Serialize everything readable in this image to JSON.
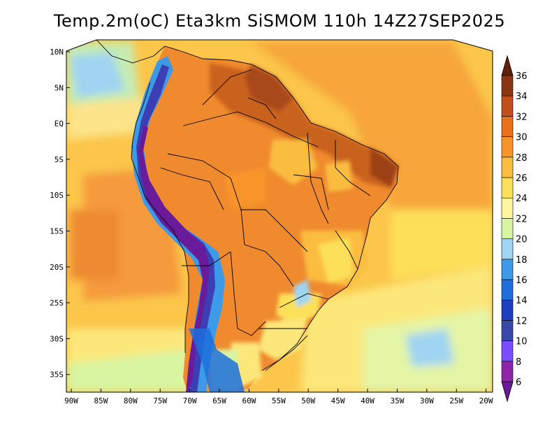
{
  "title": "Temp.2m(oC) Eta3km SiSMOM 110h 14Z27SEP2025",
  "map": {
    "lat_labels": [
      "10N",
      "5N",
      "EQ",
      "5S",
      "10S",
      "15S",
      "20S",
      "25S",
      "30S",
      "35S"
    ],
    "lon_labels": [
      "90W",
      "85W",
      "80W",
      "75W",
      "70W",
      "65W",
      "60W",
      "55W",
      "50W",
      "45W",
      "40W",
      "35W",
      "30W",
      "25W",
      "20W"
    ]
  },
  "colorbar": {
    "labels": [
      "6",
      "8",
      "10",
      "12",
      "14",
      "16",
      "18",
      "20",
      "22",
      "24",
      "26",
      "28",
      "30",
      "32",
      "34",
      "36"
    ],
    "colors": [
      "#6a1b9a",
      "#8e24aa",
      "#7c4dff",
      "#3949ab",
      "#1e3fbf",
      "#1e6fdc",
      "#3d9ae8",
      "#9fd4f2",
      "#d8f5a2",
      "#fff59d",
      "#fde05a",
      "#fbbd3f",
      "#f7942a",
      "#e9711c",
      "#c1501a",
      "#8a3412",
      "#5d210c"
    ]
  },
  "palette": {
    "ocean_warm": "#f59a3e",
    "ocean_mid": "#fbc64a",
    "ocean_cool": "#fce77a",
    "ocean_cold": "#e4f5a5",
    "land_hot": "#c9621f",
    "land_warm": "#ef8a2e",
    "andes_cold": "#3b3fb3",
    "andes_coldest": "#6a1b9a",
    "border": "#000000"
  }
}
